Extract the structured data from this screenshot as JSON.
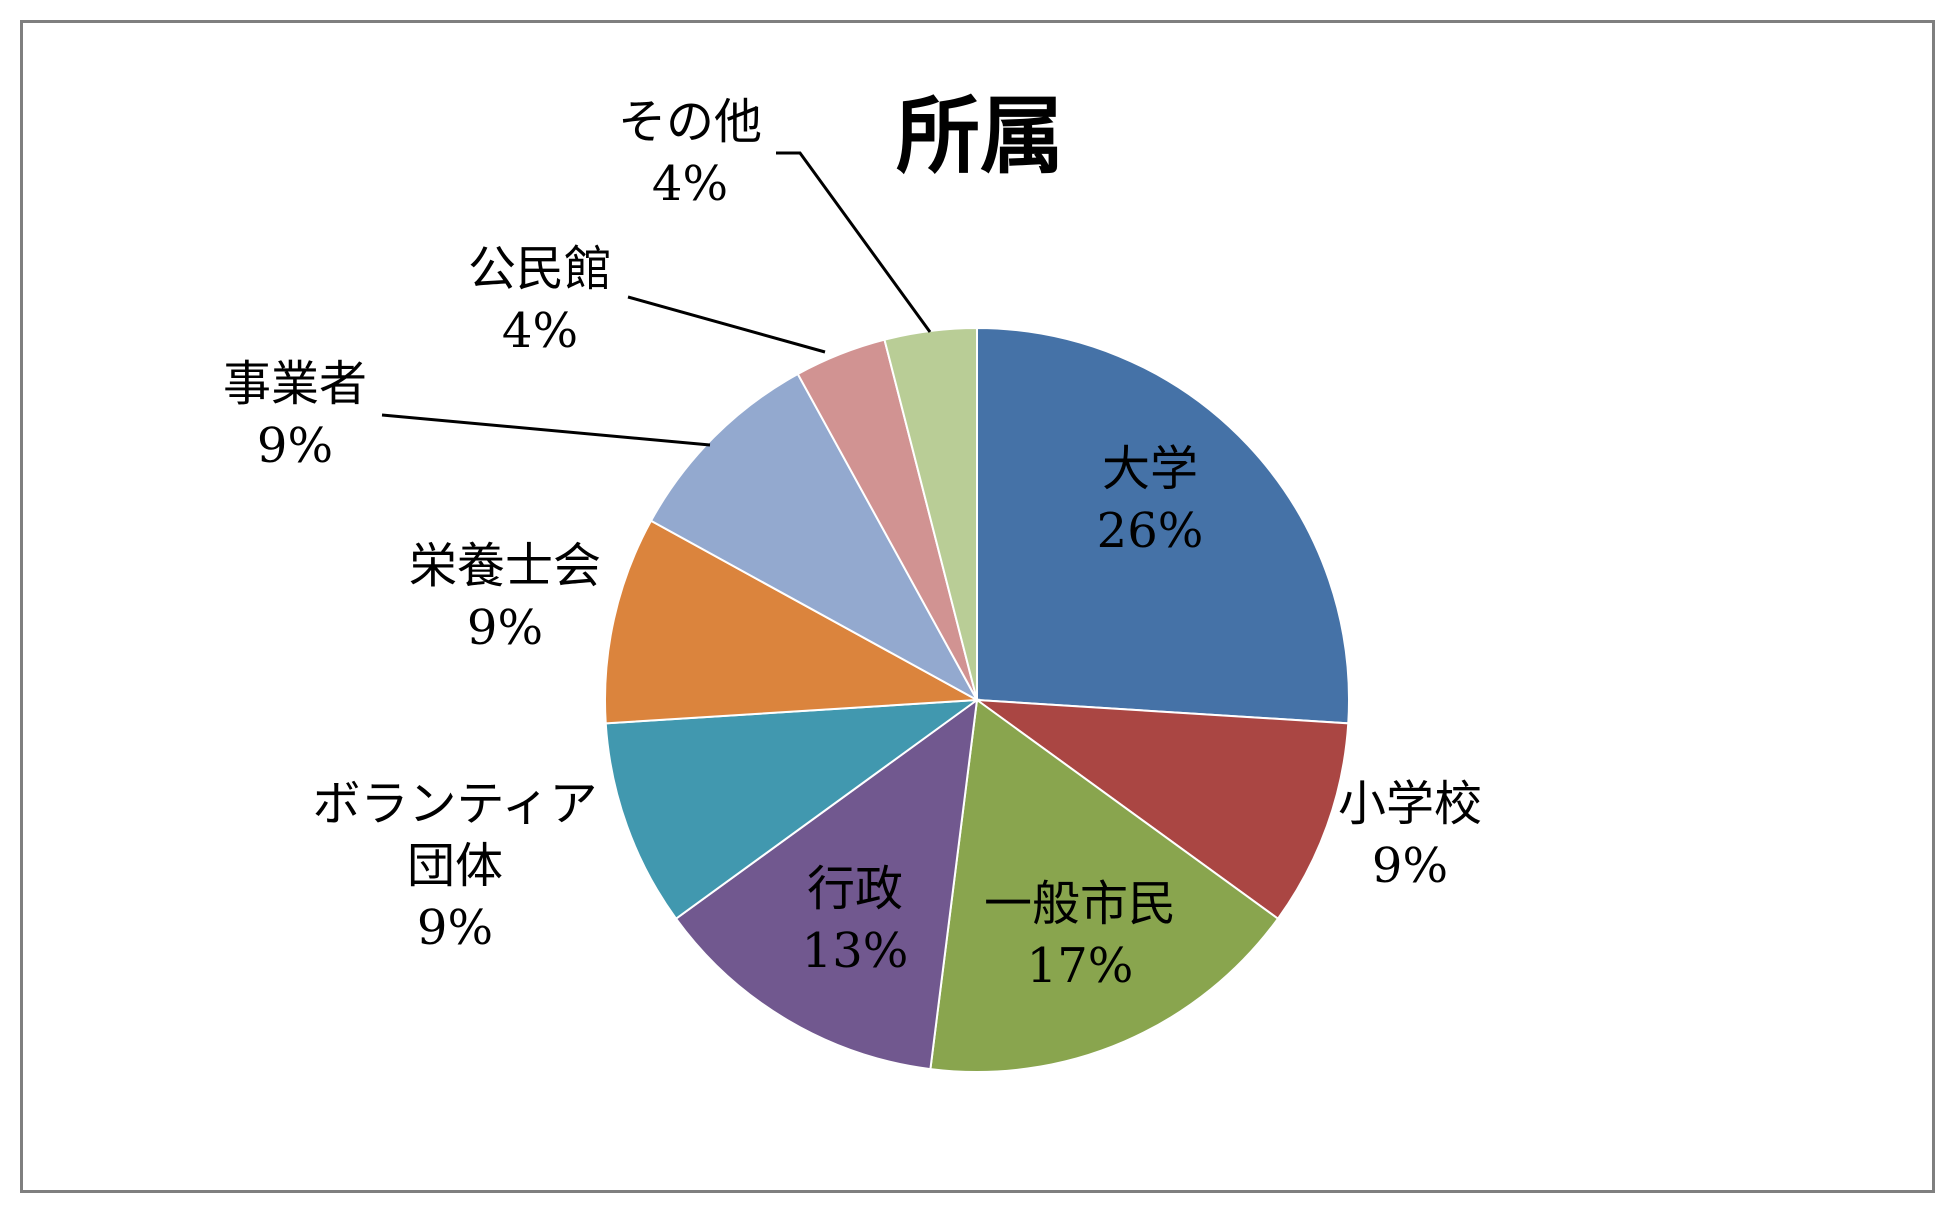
{
  "chart_data": {
    "type": "pie",
    "title": "所属",
    "categories": [
      "大学",
      "小学校",
      "一般市民",
      "行政",
      "ボランティア団体",
      "栄養士会",
      "事業者",
      "公民館",
      "その他"
    ],
    "values": [
      26,
      9,
      17,
      13,
      9,
      9,
      9,
      4,
      4
    ],
    "percent_labels": [
      "26%",
      "9%",
      "17%",
      "13%",
      "9%",
      "9%",
      "9%",
      "4%",
      "4%"
    ],
    "label_lines": [
      [
        "大学"
      ],
      [
        "小学校"
      ],
      [
        "一般市民"
      ],
      [
        "行政"
      ],
      [
        "ボランティア",
        "団体"
      ],
      [
        "栄養士会"
      ],
      [
        "事業者"
      ],
      [
        "公民館"
      ],
      [
        "その他"
      ]
    ],
    "colors": [
      "#4572a7",
      "#aa4643",
      "#89a54e",
      "#71588f",
      "#4198af",
      "#db843d",
      "#93a9cf",
      "#d19392",
      "#b9cd96"
    ],
    "start_angle_deg": 0,
    "direction": "clockwise",
    "legend": "none"
  }
}
